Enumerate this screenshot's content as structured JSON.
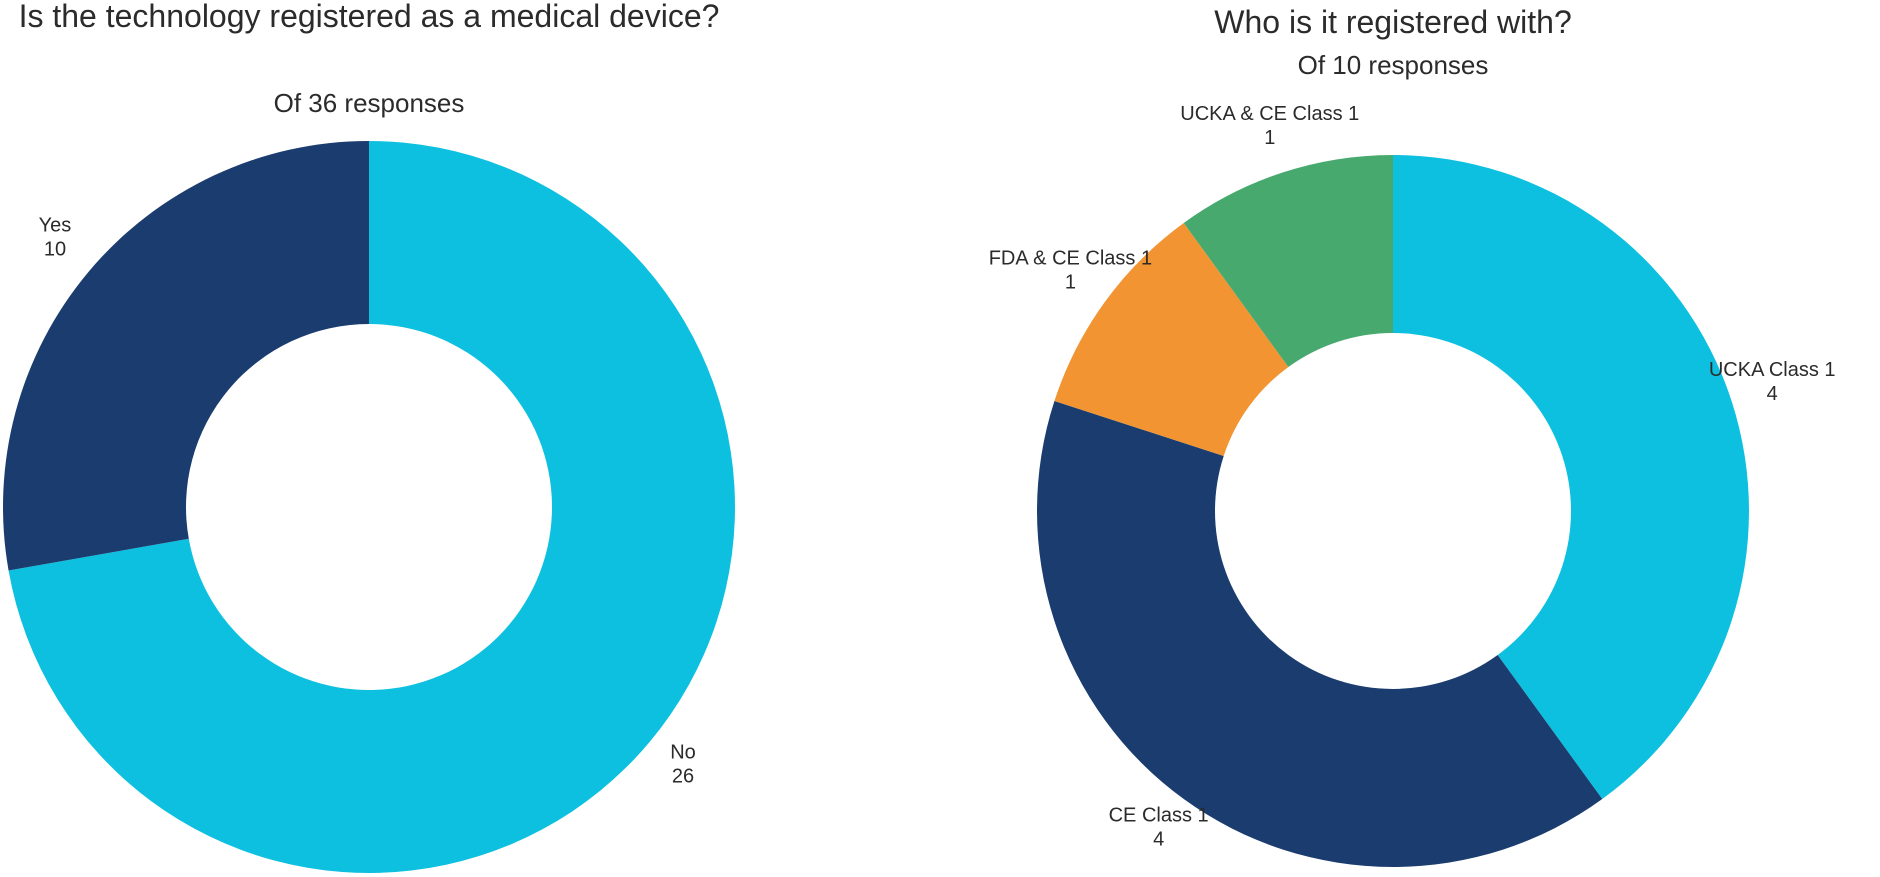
{
  "chart_data": [
    {
      "type": "donut",
      "title": "Is the technology registered as a medical device?",
      "subtitle": "Of 36 responses",
      "categories": [
        "No",
        "Yes"
      ],
      "values": [
        26,
        10
      ],
      "colors": [
        "#0dc0e0",
        "#1b3c6e"
      ]
    },
    {
      "type": "donut",
      "title": "Who is it registered with?",
      "subtitle": "Of 10 responses",
      "categories": [
        "UCKA Class 1",
        "CE Class 1",
        "FDA & CE Class 1",
        "UCKA & CE Class 1"
      ],
      "values": [
        4,
        4,
        1,
        1
      ],
      "colors": [
        "#0dc0e0",
        "#1b3c6e",
        "#f29432",
        "#48a96e"
      ]
    }
  ]
}
